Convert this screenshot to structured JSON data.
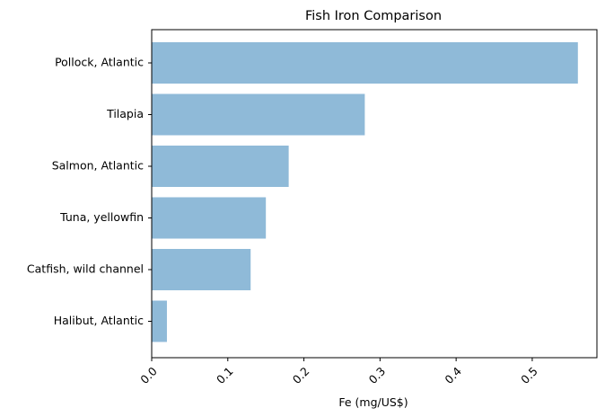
{
  "chart_data": {
    "type": "bar",
    "orientation": "horizontal",
    "title": "Fish Iron Comparison",
    "xlabel": "Fe (mg/US$)",
    "ylabel": "",
    "categories": [
      "Pollock, Atlantic",
      "Tilapia",
      "Salmon, Atlantic",
      "Tuna, yellowfin",
      "Catfish, wild channel",
      "Halibut, Atlantic"
    ],
    "values": [
      0.56,
      0.28,
      0.18,
      0.15,
      0.13,
      0.02
    ],
    "xlim": [
      0,
      0.585
    ],
    "xticks": [
      0.0,
      0.1,
      0.2,
      0.3,
      0.4,
      0.5
    ],
    "xtick_labels": [
      "0.0",
      "0.1",
      "0.2",
      "0.3",
      "0.4",
      "0.5"
    ],
    "xtick_rotation": 45,
    "bar_color": "#8fbad8",
    "grid": false,
    "legend": "none"
  }
}
